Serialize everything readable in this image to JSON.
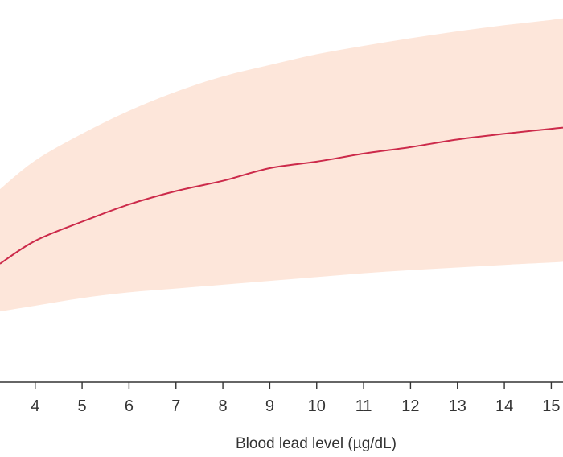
{
  "chart_data": {
    "type": "line",
    "title": "",
    "xlabel": "Blood lead level (µg/dL)",
    "ylabel": "",
    "xlim": [
      3.25,
      15.25
    ],
    "ylim": [
      0,
      1
    ],
    "x_ticks": [
      4,
      5,
      6,
      7,
      8,
      9,
      10,
      11,
      12,
      13,
      14,
      15
    ],
    "grid": false,
    "legend": "none",
    "colors": {
      "line": "#cc2a4a",
      "band": "#fde6da",
      "axis": "#333333"
    },
    "series": [
      {
        "x": [
          3.25,
          4,
          5,
          6,
          7,
          8,
          9,
          10,
          11,
          12,
          13,
          14,
          15,
          15.25
        ],
        "y": [
          0.31,
          0.37,
          0.42,
          0.465,
          0.5,
          0.527,
          0.56,
          0.577,
          0.598,
          0.615,
          0.635,
          0.65,
          0.663,
          0.666
        ],
        "lower": [
          0.185,
          0.2,
          0.22,
          0.235,
          0.245,
          0.255,
          0.265,
          0.275,
          0.285,
          0.293,
          0.3,
          0.307,
          0.313,
          0.315
        ],
        "upper": [
          0.505,
          0.58,
          0.65,
          0.71,
          0.76,
          0.8,
          0.83,
          0.858,
          0.88,
          0.9,
          0.918,
          0.934,
          0.948,
          0.952
        ]
      }
    ]
  }
}
